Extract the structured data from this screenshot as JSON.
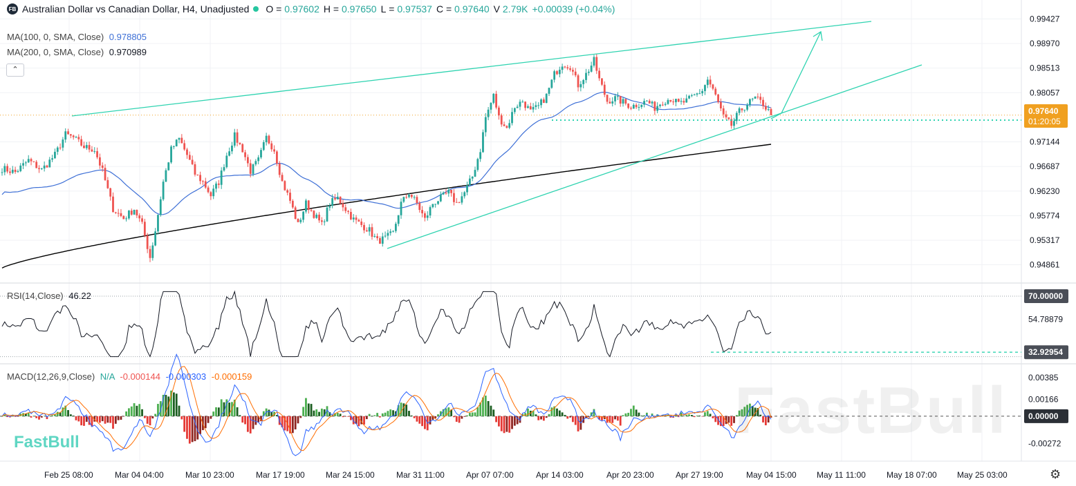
{
  "header": {
    "logo_text": "FB",
    "title": "Australian Dollar vs Canadian Dollar, H4, Unadjusted",
    "o_label": "O",
    "o_value": "0.97602",
    "h_label": "H",
    "h_value": "0.97650",
    "l_label": "L",
    "l_value": "0.97537",
    "c_label": "C",
    "c_value": "0.97640",
    "v_label": "V",
    "v_value": "2.79K",
    "change": "+0.00039 (+0.04%)",
    "collapse_icon": "chevron-up-icon"
  },
  "indicators": {
    "ma100_label": "MA(100, 0, SMA, Close)",
    "ma100_value": "0.978805",
    "ma200_label": "MA(200, 0, SMA, Close)",
    "ma200_value": "0.970989",
    "rsi_label": "RSI(14,Close)",
    "rsi_value": "46.22",
    "macd_label": "MACD(12,26,9,Close)",
    "macd_na": "N/A",
    "macd_hist": "-0.000144",
    "macd_line": "-0.000303",
    "macd_signal": "-0.000159"
  },
  "brand": "FastBull",
  "watermark": "FastBull",
  "colors": {
    "up": "#26a69a",
    "down": "#ef5350",
    "ma100": "#3d6fd6",
    "ma200": "#000000",
    "trend": "#2ed3b0",
    "price_tag": "#f0a020",
    "macd": "#2962ff",
    "signal": "#ff6d00"
  },
  "chart_data": {
    "type": "candlestick",
    "symbol": "Australian Dollar vs Canadian Dollar, H4",
    "price_axis": {
      "ticks": [
        "0.99427",
        "0.98970",
        "0.98513",
        "0.98057",
        "0.97144",
        "0.96687",
        "0.96230",
        "0.95774",
        "0.95317",
        "0.94861"
      ],
      "range": [
        0.9465,
        0.9965
      ],
      "current_price": "0.97640",
      "countdown": "01:20:05"
    },
    "time_axis": [
      "Feb 25 08:00",
      "Mar 04 04:00",
      "Mar 10 23:00",
      "Mar 17 19:00",
      "Mar 24 15:00",
      "Mar 31 11:00",
      "Apr 07 07:00",
      "Apr 14 03:00",
      "Apr 20 23:00",
      "Apr 27 19:00",
      "May 04 15:00",
      "May 11 11:00",
      "May 18 07:00",
      "May 25 03:00"
    ],
    "close_path": [
      [
        0,
        0.9665
      ],
      [
        5,
        0.9658
      ],
      [
        10,
        0.968
      ],
      [
        15,
        0.9662
      ],
      [
        20,
        0.969
      ],
      [
        24,
        0.9728
      ],
      [
        27,
        0.9722
      ],
      [
        31,
        0.9705
      ],
      [
        35,
        0.97
      ],
      [
        38,
        0.966
      ],
      [
        42,
        0.959
      ],
      [
        46,
        0.9572
      ],
      [
        50,
        0.959
      ],
      [
        53,
        0.956
      ],
      [
        56,
        0.95
      ],
      [
        58,
        0.955
      ],
      [
        61,
        0.964
      ],
      [
        64,
        0.97
      ],
      [
        67,
        0.972
      ],
      [
        70,
        0.969
      ],
      [
        73,
        0.9655
      ],
      [
        76,
        0.964
      ],
      [
        79,
        0.9615
      ],
      [
        82,
        0.964
      ],
      [
        85,
        0.969
      ],
      [
        88,
        0.9725
      ],
      [
        91,
        0.97
      ],
      [
        94,
        0.966
      ],
      [
        97,
        0.968
      ],
      [
        100,
        0.9722
      ],
      [
        103,
        0.97
      ],
      [
        106,
        0.964
      ],
      [
        109,
        0.9605
      ],
      [
        112,
        0.956
      ],
      [
        115,
        0.96
      ],
      [
        118,
        0.958
      ],
      [
        121,
        0.956
      ],
      [
        124,
        0.96
      ],
      [
        127,
        0.961
      ],
      [
        130,
        0.959
      ],
      [
        133,
        0.957
      ],
      [
        136,
        0.956
      ],
      [
        139,
        0.955
      ],
      [
        142,
        0.953
      ],
      [
        145,
        0.9535
      ],
      [
        148,
        0.9545
      ],
      [
        151,
        0.96
      ],
      [
        154,
        0.962
      ],
      [
        157,
        0.96
      ],
      [
        160,
        0.957
      ],
      [
        163,
        0.96
      ],
      [
        166,
        0.961
      ],
      [
        169,
        0.962
      ],
      [
        172,
        0.96
      ],
      [
        175,
        0.962
      ],
      [
        178,
        0.965
      ],
      [
        181,
        0.97
      ],
      [
        183,
        0.976
      ],
      [
        186,
        0.98
      ],
      [
        188,
        0.976
      ],
      [
        191,
        0.974
      ],
      [
        194,
        0.978
      ],
      [
        197,
        0.979
      ],
      [
        200,
        0.977
      ],
      [
        203,
        0.978
      ],
      [
        206,
        0.98
      ],
      [
        209,
        0.984
      ],
      [
        212,
        0.986
      ],
      [
        215,
        0.9855
      ],
      [
        218,
        0.982
      ],
      [
        221,
        0.984
      ],
      [
        224,
        0.9865
      ],
      [
        226,
        0.983
      ],
      [
        229,
        0.979
      ],
      [
        232,
        0.9795
      ],
      [
        235,
        0.9788
      ],
      [
        238,
        0.978
      ],
      [
        241,
        0.9785
      ],
      [
        244,
        0.979
      ],
      [
        247,
        0.9778
      ],
      [
        250,
        0.979
      ],
      [
        253,
        0.9795
      ],
      [
        256,
        0.9785
      ],
      [
        259,
        0.979
      ],
      [
        262,
        0.98
      ],
      [
        265,
        0.981
      ],
      [
        267,
        0.983
      ],
      [
        270,
        0.98
      ],
      [
        273,
        0.976
      ],
      [
        276,
        0.9745
      ],
      [
        279,
        0.977
      ],
      [
        282,
        0.9785
      ],
      [
        285,
        0.9795
      ],
      [
        288,
        0.9785
      ],
      [
        291,
        0.9764
      ]
    ],
    "ma100": {
      "name": "MA(100, 0, SMA, Close)",
      "last": 0.978805
    },
    "ma200": {
      "name": "MA(200, 0, SMA, Close)",
      "last": 0.970989
    },
    "rsi": {
      "label": "RSI(14,Close)",
      "value": 46.22,
      "ticks": [
        "70.00000",
        "54.78879",
        "32.92954"
      ],
      "range": [
        28,
        75
      ]
    },
    "macd": {
      "label": "MACD(12,26,9,Close)",
      "ticks": [
        "0.00385",
        "0.00166",
        "0.00000",
        "-0.00272"
      ],
      "range": [
        -0.0042,
        0.0048
      ],
      "histogram": -0.000144,
      "macd": -0.000303,
      "signal": -0.000159
    }
  }
}
